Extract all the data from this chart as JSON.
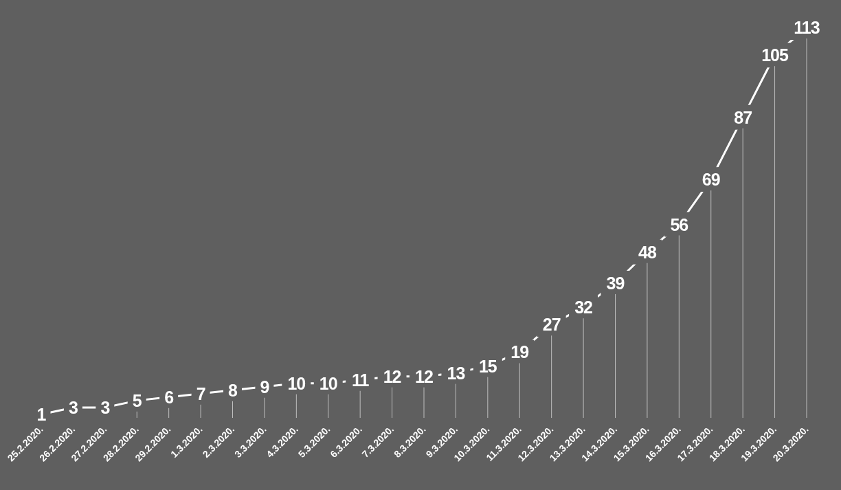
{
  "chart_data": {
    "type": "line",
    "categories": [
      "25.2.2020.",
      "26.2.2020.",
      "27.2.2020.",
      "28.2.2020.",
      "29.2.2020.",
      "1.3.2020.",
      "2.3.2020.",
      "3.3.2020.",
      "4.3.2020.",
      "5.3.2020.",
      "6.3.2020.",
      "7.3.2020.",
      "8.3.2020.",
      "9.3.2020.",
      "10.3.2020.",
      "11.3.2020.",
      "12.3.2020.",
      "13.3.2020.",
      "14.3.2020.",
      "15.3.2020.",
      "16.3.2020.",
      "17.3.2020.",
      "18.3.2020.",
      "19.3.2020.",
      "20.3.2020."
    ],
    "series": [
      {
        "color": "#ffffff",
        "values": [
          1,
          3,
          3,
          5,
          6,
          7,
          8,
          9,
          10,
          10,
          11,
          12,
          12,
          13,
          15,
          19,
          27,
          32,
          39,
          48,
          56,
          69,
          87,
          105,
          113
        ]
      }
    ],
    "data_labels": true,
    "line_style": "solid",
    "grid": "x",
    "legend": false
  }
}
